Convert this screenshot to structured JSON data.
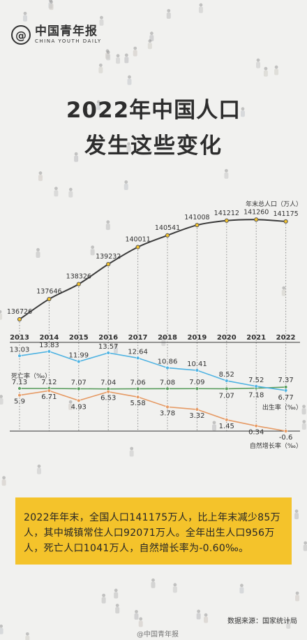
{
  "brand": {
    "icon": "@",
    "name_cn": "中国青年报",
    "name_en": "CHINA YOUTH DAILY"
  },
  "title": {
    "line1": "2022年中国人口",
    "line2": "发生这些变化"
  },
  "colors": {
    "population_line": "#3a3a3a",
    "death_rate": "#4fb3e2",
    "birth_rate": "#5b9e5f",
    "natural_growth": "#e69a64",
    "accent_yellow": "#f4c32b",
    "dotted_guides": "#8a8a8a"
  },
  "chart_data": {
    "type": "line",
    "years": [
      "2013",
      "2014",
      "2015",
      "2016",
      "2017",
      "2018",
      "2019",
      "2020",
      "2021",
      "2022"
    ],
    "population": {
      "label": "年末总人口（万人）",
      "values": [
        136726,
        137646,
        138326,
        139232,
        140011,
        140541,
        141008,
        141212,
        141260,
        141175
      ]
    },
    "rates": [
      {
        "name": "死亡率（‰）",
        "key": "death",
        "values": [
          7.13,
          7.12,
          7.07,
          7.04,
          7.06,
          7.08,
          7.09,
          7.07,
          7.18,
          7.37
        ]
      },
      {
        "name": "出生率（‰）",
        "key": "birth",
        "values": [
          13.03,
          13.83,
          11.99,
          13.57,
          12.64,
          10.86,
          10.41,
          8.52,
          7.52,
          6.77
        ]
      },
      {
        "name": "自然增长率（‰）",
        "key": "growth",
        "values": [
          5.9,
          6.71,
          4.93,
          6.53,
          5.58,
          3.78,
          3.32,
          1.45,
          0.34,
          -0.6
        ]
      }
    ]
  },
  "summary": "2022年年末，全国人口141175万人，比上年末减少85万人，其中城镇常住人口92071万人。全年出生人口956万人，死亡人口1041万人，自然增长率为-0.60‰。",
  "source": "数据来源：国家统计局",
  "watermark": "@中国青年报"
}
